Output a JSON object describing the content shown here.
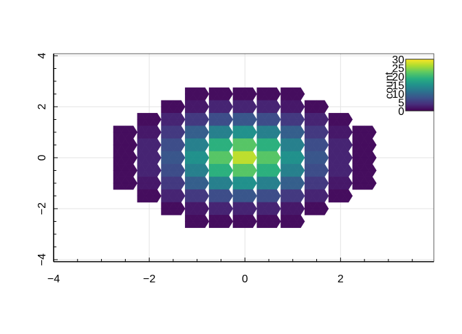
{
  "chart_data": {
    "type": "heatmap",
    "binning": "triangular",
    "title": "",
    "xlabel": "",
    "ylabel": "",
    "xlim": [
      -4.0,
      3.95
    ],
    "ylim": [
      -4.08,
      4.08
    ],
    "x_ticks": [
      -4,
      -2,
      0,
      2
    ],
    "y_ticks": [
      -4,
      -2,
      0,
      2,
      4
    ],
    "x_tick_labels": [
      "−4",
      "−2",
      "0",
      "2"
    ],
    "y_tick_labels": [
      "−4",
      "−2",
      "0",
      "2",
      "4"
    ],
    "grid": true,
    "bin_x_centers": [
      -3,
      -2.5,
      -2,
      -1.5,
      -1,
      -0.5,
      0,
      0.5,
      1,
      1.5,
      2,
      2.5,
      3
    ],
    "bin_y_centers": [
      3,
      2.5,
      2,
      1.5,
      1,
      0.5,
      0,
      -0.5,
      -1,
      -1.5,
      -2,
      -2.5,
      -3
    ],
    "counts": [
      [
        0,
        0,
        0,
        0,
        0,
        0,
        0,
        0,
        0,
        0,
        0,
        0,
        0
      ],
      [
        0,
        0,
        0,
        0,
        1,
        1,
        1,
        1,
        1,
        0,
        0,
        0,
        0
      ],
      [
        0,
        0,
        0,
        1,
        2,
        3,
        3,
        3,
        2,
        1,
        0,
        0,
        0
      ],
      [
        0,
        0,
        1,
        3,
        5,
        7,
        8,
        7,
        5,
        3,
        1,
        0,
        0
      ],
      [
        0,
        1,
        2,
        5,
        9,
        13,
        15,
        13,
        9,
        5,
        2,
        1,
        0
      ],
      [
        0,
        1,
        3,
        7,
        13,
        19,
        22,
        19,
        13,
        7,
        3,
        1,
        0
      ],
      [
        0,
        1,
        3,
        8,
        15,
        22,
        27,
        22,
        15,
        8,
        3,
        1,
        0
      ],
      [
        0,
        1,
        3,
        7,
        13,
        19,
        22,
        19,
        13,
        7,
        3,
        1,
        0
      ],
      [
        0,
        1,
        2,
        5,
        9,
        13,
        15,
        13,
        9,
        5,
        2,
        1,
        0
      ],
      [
        0,
        0,
        1,
        3,
        5,
        7,
        8,
        7,
        5,
        3,
        1,
        0,
        0
      ],
      [
        0,
        0,
        0,
        1,
        2,
        3,
        3,
        3,
        2,
        1,
        0,
        0,
        0
      ],
      [
        0,
        0,
        0,
        0,
        1,
        1,
        1,
        1,
        1,
        0,
        0,
        0,
        0
      ],
      [
        0,
        0,
        0,
        0,
        0,
        0,
        0,
        0,
        0,
        0,
        0,
        0,
        0
      ]
    ],
    "colorbar": {
      "title": "count",
      "range": [
        0,
        30
      ],
      "ticks": [
        "30",
        "25",
        "20",
        "15",
        "10",
        "5",
        "0"
      ],
      "colormap": "viridis",
      "placement": "top-right"
    }
  }
}
